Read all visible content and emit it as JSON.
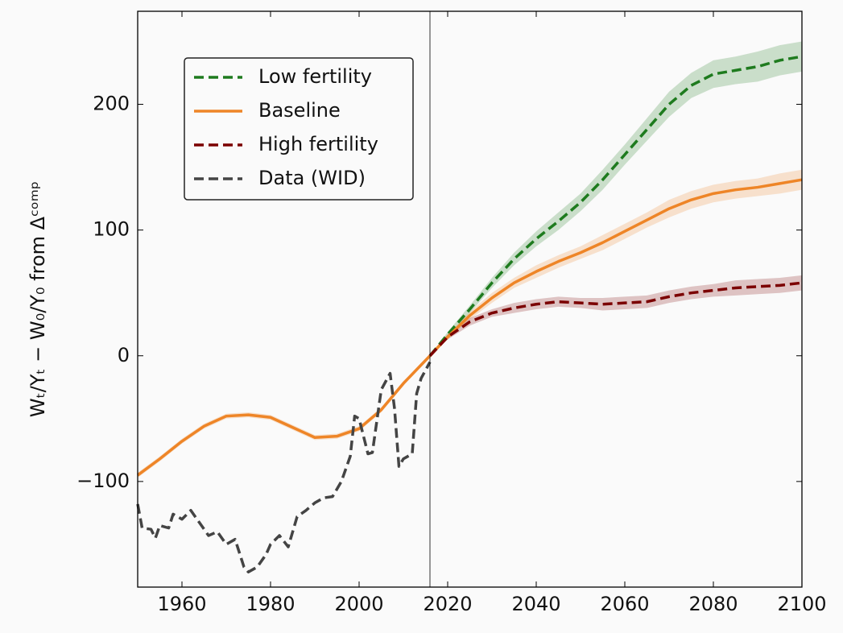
{
  "chart_data": {
    "type": "line",
    "y_label": "Wₜ/Yₜ − W₀/Y₀ from Δᶜᵒᵐᵖ",
    "xlim": [
      1950,
      2100
    ],
    "xticks": [
      1960,
      1980,
      2000,
      2020,
      2040,
      2060,
      2080,
      2100
    ],
    "ylim": [
      -184,
      274
    ],
    "yticks": [
      {
        "value": -100,
        "label": "−100"
      },
      0,
      100,
      200
    ],
    "vline_x": 2016,
    "legend": "upper left",
    "series": [
      {
        "name": "Low fertility",
        "color": "#1e7b1e",
        "dashed": true,
        "x": [
          2016,
          2020,
          2025,
          2030,
          2035,
          2040,
          2045,
          2050,
          2055,
          2060,
          2065,
          2070,
          2075,
          2080,
          2085,
          2090,
          2095,
          2100
        ],
        "values": [
          0,
          17,
          37,
          58,
          77,
          93,
          107,
          122,
          140,
          160,
          180,
          200,
          215,
          224,
          227,
          230,
          235,
          238
        ],
        "band": [
          0,
          2,
          3,
          4,
          5,
          6,
          7,
          7,
          8,
          8,
          9,
          10,
          10,
          11,
          11,
          12,
          12,
          12
        ]
      },
      {
        "name": "Baseline",
        "color": "#ee8527",
        "dashed": false,
        "x": [
          1950,
          1955,
          1960,
          1965,
          1970,
          1975,
          1980,
          1985,
          1990,
          1995,
          2000,
          2005,
          2010,
          2016,
          2020,
          2025,
          2030,
          2035,
          2040,
          2045,
          2050,
          2055,
          2060,
          2065,
          2070,
          2075,
          2080,
          2085,
          2090,
          2095,
          2100
        ],
        "values": [
          -95,
          -82,
          -68,
          -56,
          -48,
          -47,
          -49,
          -57,
          -65,
          -64,
          -58,
          -43,
          -22,
          0,
          15,
          32,
          46,
          58,
          67,
          75,
          82,
          90,
          99,
          108,
          117,
          124,
          129,
          132,
          134,
          137,
          140
        ],
        "band": [
          2,
          2,
          2,
          2,
          2,
          2,
          2,
          2,
          2,
          2,
          2,
          2,
          2,
          0,
          2,
          3,
          4,
          4,
          5,
          5,
          5,
          6,
          6,
          6,
          7,
          7,
          7,
          7,
          7,
          8,
          8
        ]
      },
      {
        "name": "High fertility",
        "color": "#7b0000",
        "dashed": true,
        "x": [
          2016,
          2020,
          2025,
          2030,
          2035,
          2040,
          2045,
          2050,
          2055,
          2060,
          2065,
          2070,
          2075,
          2080,
          2085,
          2090,
          2095,
          2100
        ],
        "values": [
          0,
          15,
          27,
          34,
          38,
          41,
          43,
          42,
          41,
          42,
          43,
          47,
          50,
          52,
          54,
          55,
          56,
          58
        ],
        "band": [
          0,
          2,
          3,
          3,
          4,
          4,
          4,
          4,
          5,
          5,
          5,
          5,
          5,
          5,
          6,
          6,
          6,
          6
        ]
      },
      {
        "name": "Data (WID)",
        "color": "#444444",
        "dashed": true,
        "x": [
          1950,
          1951,
          1953,
          1954,
          1955,
          1957,
          1958,
          1960,
          1962,
          1964,
          1966,
          1968,
          1970,
          1972,
          1974,
          1975,
          1977,
          1979,
          1980,
          1982,
          1984,
          1986,
          1988,
          1990,
          1992,
          1994,
          1996,
          1998,
          1999,
          2000,
          2002,
          2003,
          2005,
          2007,
          2008,
          2009,
          2010,
          2012,
          2013,
          2014,
          2016
        ],
        "values": [
          -118,
          -137,
          -138,
          -145,
          -135,
          -137,
          -126,
          -130,
          -123,
          -133,
          -143,
          -140,
          -150,
          -146,
          -168,
          -172,
          -168,
          -158,
          -150,
          -143,
          -152,
          -128,
          -123,
          -117,
          -113,
          -112,
          -100,
          -80,
          -48,
          -50,
          -78,
          -77,
          -27,
          -14,
          -42,
          -88,
          -82,
          -78,
          -30,
          -18,
          -5
        ]
      }
    ]
  }
}
